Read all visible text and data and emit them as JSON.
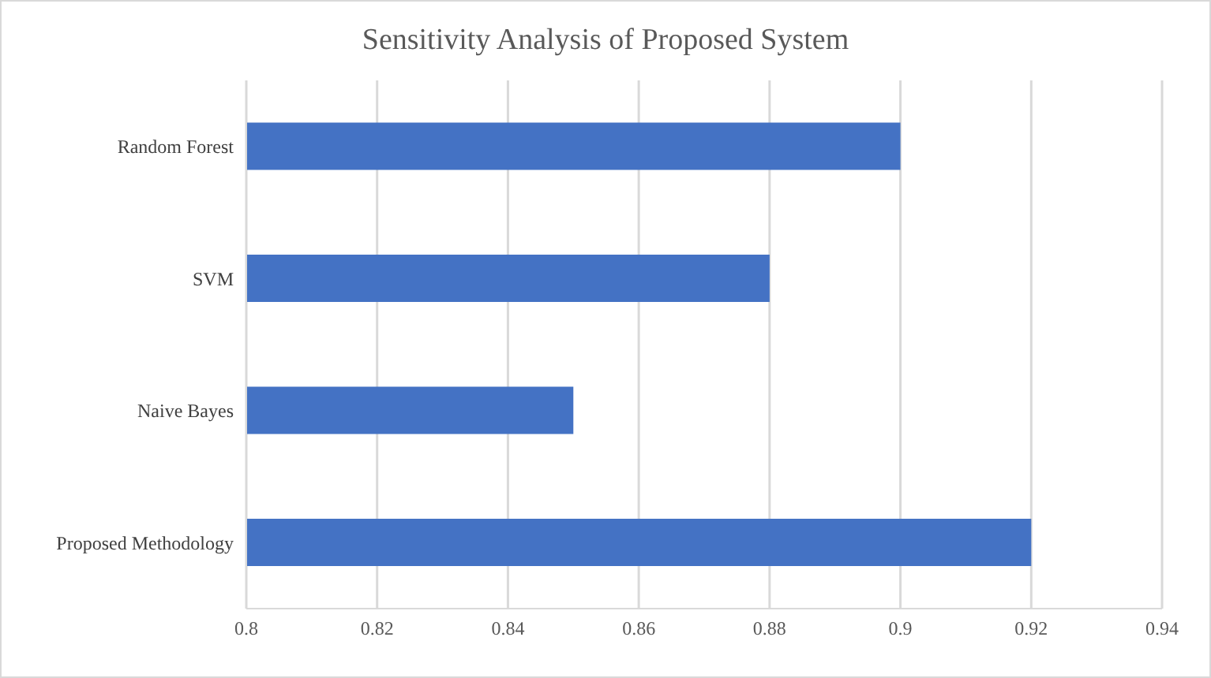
{
  "chart_data": {
    "type": "bar",
    "orientation": "horizontal",
    "title": "Sensitivity Analysis of Proposed System",
    "categories": [
      "Random Forest",
      "SVM",
      "Naive Bayes",
      "Proposed Methodology"
    ],
    "values": [
      0.9,
      0.88,
      0.85,
      0.92
    ],
    "color": "#4472c4",
    "xlim": [
      0.8,
      0.94
    ],
    "xticks": [
      0.8,
      0.82,
      0.84,
      0.86,
      0.88,
      0.9,
      0.92,
      0.94
    ],
    "grid": "x"
  }
}
